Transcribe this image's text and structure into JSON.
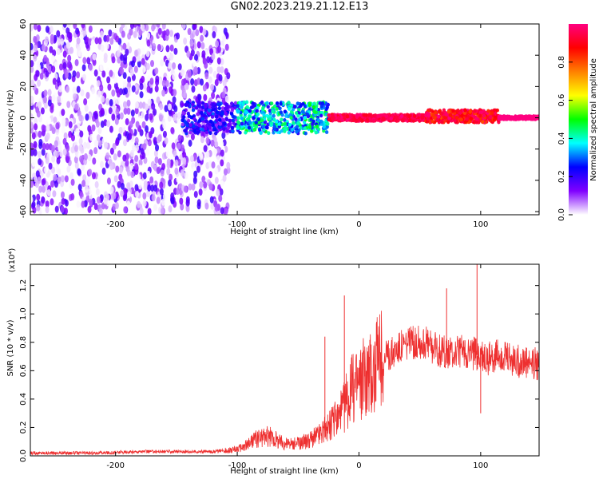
{
  "title": "GN02.2023.219.21.12.E13",
  "chart_data": [
    {
      "type": "heatmap",
      "xlabel": "Height of straight line (km)",
      "ylabel": "Frequency (Hz)",
      "xlim": [
        -270,
        148
      ],
      "ylim": [
        -62,
        60
      ],
      "xticks": [
        -200,
        -100,
        0,
        100
      ],
      "yticks": [
        60,
        40,
        20,
        0,
        -20,
        -40,
        -60
      ],
      "colorbar": {
        "label": "Normalized spectral amplitude",
        "range": [
          0,
          1
        ],
        "ticks": [
          0.0,
          0.2,
          0.4,
          0.6,
          0.8
        ],
        "colors": [
          "#ffffff",
          "#8000ff",
          "#0000ff",
          "#00ffff",
          "#00ff00",
          "#ffff00",
          "#ff8000",
          "#ff0000",
          "#ff0080"
        ]
      },
      "regions": [
        {
          "x": [
            -270,
            -107
          ],
          "freq_band": [
            -60,
            60
          ],
          "amplitude": "0.0-0.2 (noise)"
        },
        {
          "x": [
            -145,
            -100
          ],
          "freq_band": [
            -10,
            10
          ],
          "amplitude": "0.1-0.3"
        },
        {
          "x": [
            -100,
            -25
          ],
          "freq_band": [
            -10,
            10
          ],
          "amplitude": "0.2-0.5"
        },
        {
          "x": [
            -25,
            55
          ],
          "freq_band": [
            -2,
            2
          ],
          "amplitude": "0.9-1.0"
        },
        {
          "x": [
            55,
            115
          ],
          "freq_band": [
            -3,
            5
          ],
          "amplitude": "0.8-1.0"
        },
        {
          "x": [
            115,
            148
          ],
          "freq_band": [
            -1,
            1
          ],
          "amplitude": "1.0"
        }
      ]
    },
    {
      "type": "line",
      "xlabel": "Height of straight line (km)",
      "ylabel": "SNR (10 * v/v)",
      "y_multiplier": "(x10⁴)",
      "xlim": [
        -270,
        148
      ],
      "ylim": [
        0,
        1.35
      ],
      "xticks": [
        -200,
        -100,
        0,
        100
      ],
      "yticks": [
        0.0,
        0.2,
        0.4,
        0.6,
        0.8,
        1.0,
        1.2
      ],
      "color": "#ee3030",
      "series": [
        {
          "x": [
            -270,
            -240,
            -210,
            -180,
            -150,
            -120,
            -105,
            -95,
            -85,
            -75,
            -65,
            -55,
            -45,
            -35,
            -25,
            -15,
            -5,
            5,
            15,
            25,
            35,
            45,
            55,
            65,
            75,
            85,
            95,
            105,
            115,
            125,
            135,
            148
          ],
          "y": [
            0.02,
            0.02,
            0.02,
            0.03,
            0.03,
            0.03,
            0.04,
            0.06,
            0.12,
            0.14,
            0.1,
            0.08,
            0.1,
            0.14,
            0.2,
            0.3,
            0.48,
            0.56,
            0.64,
            0.72,
            0.78,
            0.8,
            0.8,
            0.74,
            0.72,
            0.74,
            0.72,
            0.68,
            0.72,
            0.68,
            0.66,
            0.64
          ]
        }
      ],
      "spikes": [
        {
          "x": -12,
          "y": 1.13
        },
        {
          "x": -28,
          "y": 0.84
        },
        {
          "x": 5,
          "y": 0.63
        },
        {
          "x": 72,
          "y": 1.18
        },
        {
          "x": 97,
          "y": 1.35
        },
        {
          "x": 100,
          "y": 0.3
        }
      ]
    }
  ]
}
